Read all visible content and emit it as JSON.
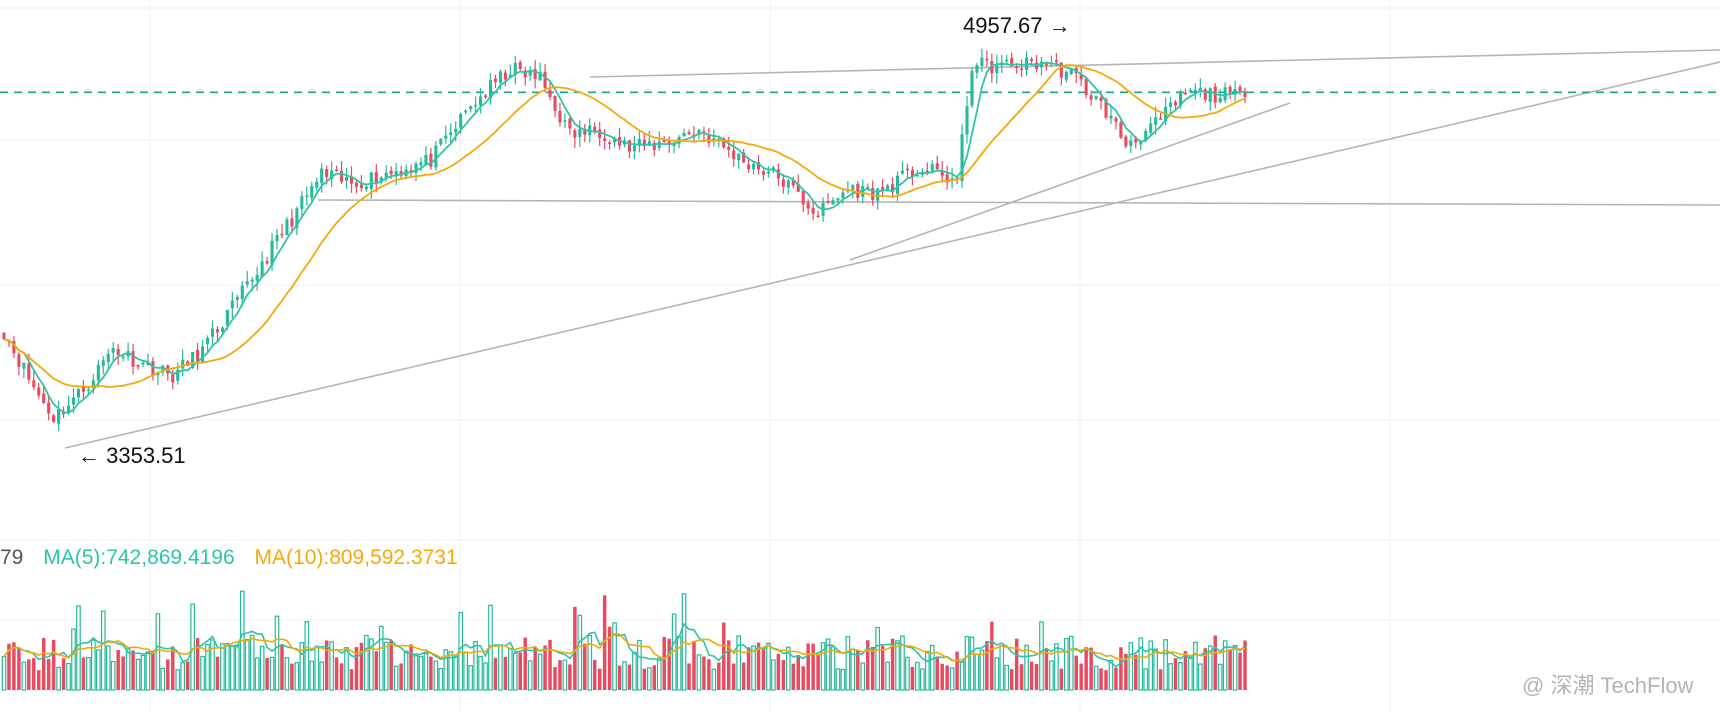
{
  "chart_data": [
    {
      "type": "candlestick",
      "title": "",
      "y_range": [
        3000,
        5100
      ],
      "annotations": {
        "high": "4957.67 →",
        "low": "← 3353.51"
      },
      "reference_line": 4740,
      "moving_averages": [
        "short",
        "long"
      ],
      "candles": [],
      "trendlines_note": ""
    },
    {
      "type": "bar",
      "title": "",
      "legend": {
        "prefix": "79",
        "ma5": "MA(5):742,869.4196",
        "ma10": "MA(10):809,592.3731"
      }
    }
  ],
  "colors": {
    "up": "#26b99a",
    "down": "#e84a5f",
    "ma_short": "#2ec4a8",
    "ma_long": "#f5a80a",
    "trend": "#b5b5b5",
    "grid": "#f1f1f1",
    "dashed": "#19a589"
  },
  "watermark": "@ 深潮 TechFlow"
}
